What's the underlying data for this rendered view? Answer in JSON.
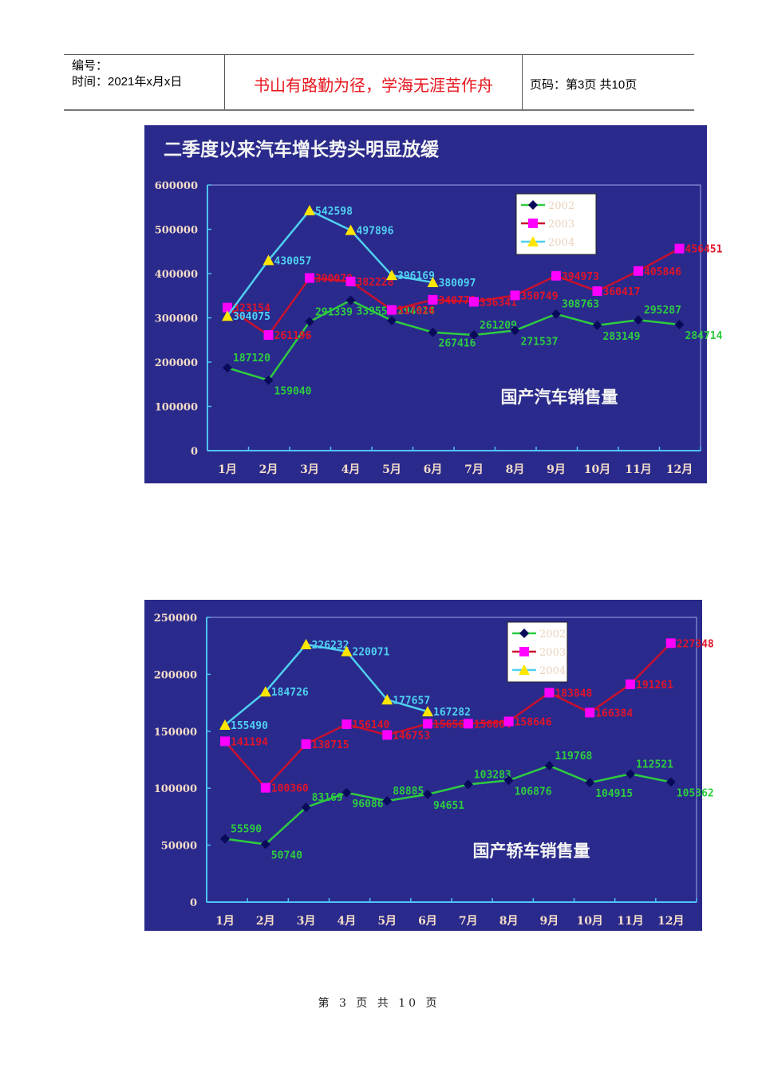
{
  "header": {
    "number_label": "编号：",
    "time_label": "时间：2021年x月x日",
    "motto": "书山有路勤为径，学海无涯苦作舟",
    "page_info": "页码：第3页  共10页"
  },
  "footer": {
    "page_text": "第 3 页 共 10 页"
  },
  "colors": {
    "background": "#2a2a8c",
    "axis": "#4fc3f7",
    "series_2002_line": "#2ecc40",
    "series_2002_marker": "#0a0a5a",
    "series_2003_line": "#c8102e",
    "series_2003_marker": "#ff00ff",
    "series_2004_line": "#4fd0f0",
    "series_2004_marker": "#ffe600",
    "tick_text": "#f4dcc8"
  },
  "chart_data": [
    {
      "type": "line",
      "title": "二季度以来汽车增长势头明显放缓",
      "subtitle": "国产汽车销售量",
      "categories": [
        "1月",
        "2月",
        "3月",
        "4月",
        "5月",
        "6月",
        "7月",
        "8月",
        "9月",
        "10月",
        "11月",
        "12月"
      ],
      "ylim": [
        0,
        600000
      ],
      "yticks": [
        "0",
        "100000",
        "200000",
        "300000",
        "400000",
        "500000",
        "600000"
      ],
      "legend": [
        "2002",
        "2003",
        "2004"
      ],
      "legend_position": "top-right",
      "series": [
        {
          "name": "2002",
          "values": [
            187120,
            159040,
            291339,
            339553,
            294014,
            267416,
            261209,
            271537,
            308763,
            283149,
            295287,
            284714
          ]
        },
        {
          "name": "2003",
          "values": [
            323154,
            261196,
            390078,
            382228,
            317826,
            340779,
            336341,
            350749,
            394973,
            360417,
            405846,
            456451
          ]
        },
        {
          "name": "2004",
          "values": [
            304075,
            430057,
            542598,
            497896,
            396169,
            380097,
            null,
            null,
            null,
            null,
            null,
            null
          ]
        }
      ]
    },
    {
      "type": "line",
      "title": "",
      "subtitle": "国产轿车销售量",
      "categories": [
        "1月",
        "2月",
        "3月",
        "4月",
        "5月",
        "6月",
        "7月",
        "8月",
        "9月",
        "10月",
        "11月",
        "12月"
      ],
      "ylim": [
        0,
        250000
      ],
      "yticks": [
        "0",
        "50000",
        "100000",
        "150000",
        "200000",
        "250000"
      ],
      "legend": [
        "2002",
        "2003",
        "2004"
      ],
      "legend_position": "top-center",
      "series": [
        {
          "name": "2002",
          "values": [
            55590,
            50740,
            83169,
            96086,
            88885,
            94651,
            103283,
            106876,
            119768,
            104915,
            112521,
            105362
          ]
        },
        {
          "name": "2003",
          "values": [
            141194,
            100360,
            138715,
            156140,
            146753,
            156564,
            156604,
            158646,
            183848,
            166384,
            191261,
            227348
          ]
        },
        {
          "name": "2004",
          "values": [
            155490,
            184726,
            226232,
            220071,
            177657,
            167282,
            null,
            null,
            null,
            null,
            null,
            null
          ]
        }
      ]
    }
  ]
}
